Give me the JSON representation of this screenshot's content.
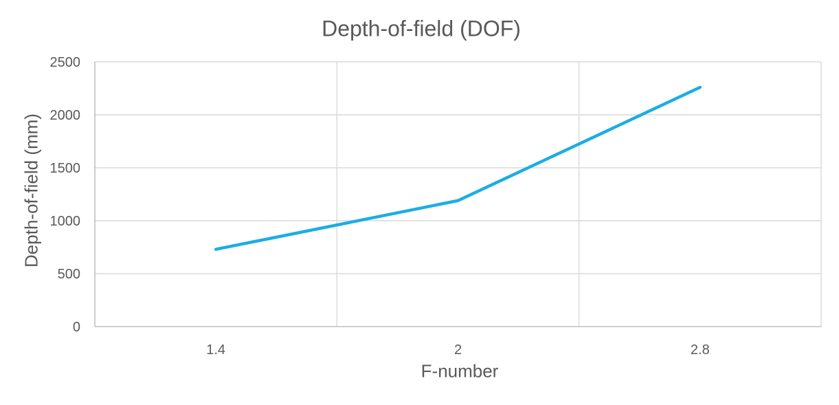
{
  "chart_data": {
    "type": "line",
    "title": "Depth-of-field (DOF)",
    "xlabel": "F-number",
    "ylabel": "Depth-of-field (mm)",
    "categories": [
      "1.4",
      "2",
      "2.8"
    ],
    "series": [
      {
        "name": "Depth-of-field (DOF)",
        "values": [
          730,
          1190,
          2260
        ]
      }
    ],
    "ylim": [
      0,
      2500
    ],
    "yticks": [
      0,
      500,
      1000,
      1500,
      2000,
      2500
    ],
    "grid": "horizontal-and-vertical-major",
    "legend": "none",
    "colors": {
      "series_line": "#1CADE4",
      "text": "#595959",
      "gridline": "#D9D9D9",
      "axis_line": "#BFBFBF",
      "background": "#FFFFFF"
    }
  }
}
